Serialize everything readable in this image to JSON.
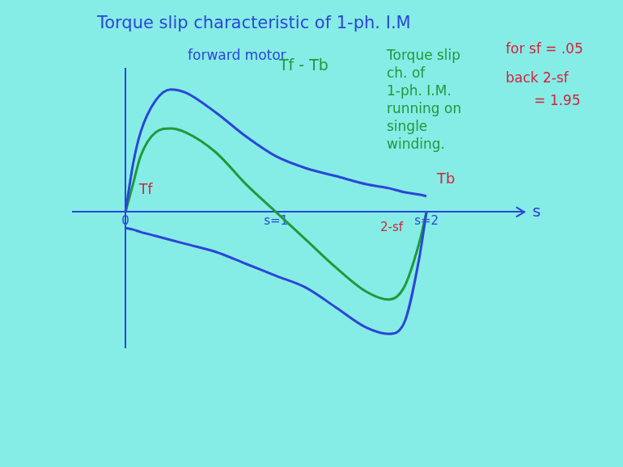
{
  "chart_data": {
    "type": "line",
    "title": "Torque slip characteristic of 1-ph. I.M",
    "x_label": "s",
    "x": [
      0,
      0.05,
      0.1,
      0.2,
      0.3,
      0.4,
      0.6,
      0.8,
      1.0,
      1.2,
      1.4,
      1.6,
      1.75,
      1.85,
      1.95,
      2.0
    ],
    "series": [
      {
        "name": "forward motor",
        "color": "#2b46d6",
        "values": [
          0,
          0.6,
          1.0,
          1.4,
          1.54,
          1.5,
          1.25,
          0.95,
          0.7,
          0.55,
          0.45,
          0.35,
          0.3,
          0.25,
          0.22,
          0.2
        ]
      },
      {
        "name": "Tb",
        "color": "#2b46d6",
        "values": [
          -0.2,
          -0.22,
          -0.25,
          -0.3,
          -0.35,
          -0.4,
          -0.5,
          -0.65,
          -0.8,
          -0.95,
          -1.2,
          -1.45,
          -1.53,
          -1.4,
          -0.6,
          0
        ]
      },
      {
        "name": "Tf - Tb",
        "color": "#1f9a3a",
        "values": [
          0,
          0.35,
          0.7,
          1.0,
          1.05,
          1.0,
          0.75,
          0.35,
          0,
          -0.35,
          -0.7,
          -1.0,
          -1.1,
          -0.95,
          -0.4,
          0
        ]
      }
    ],
    "xlim": [
      -0.35,
      2.65
    ],
    "xticks": [
      {
        "value": 0,
        "label": "0"
      },
      {
        "value": 1,
        "label": "s=1"
      },
      {
        "value": 2,
        "label": "s=2"
      }
    ],
    "ylim": [
      -1.7,
      1.8
    ],
    "yticks": [],
    "tick_labels": "x",
    "grid": false,
    "annotations": [
      "Torque slip ch. of 1-ph. I.M. running on single winding.",
      "Tf",
      "2-sf",
      "for sf = .05",
      "back 2-sf",
      "= 1.95"
    ]
  }
}
